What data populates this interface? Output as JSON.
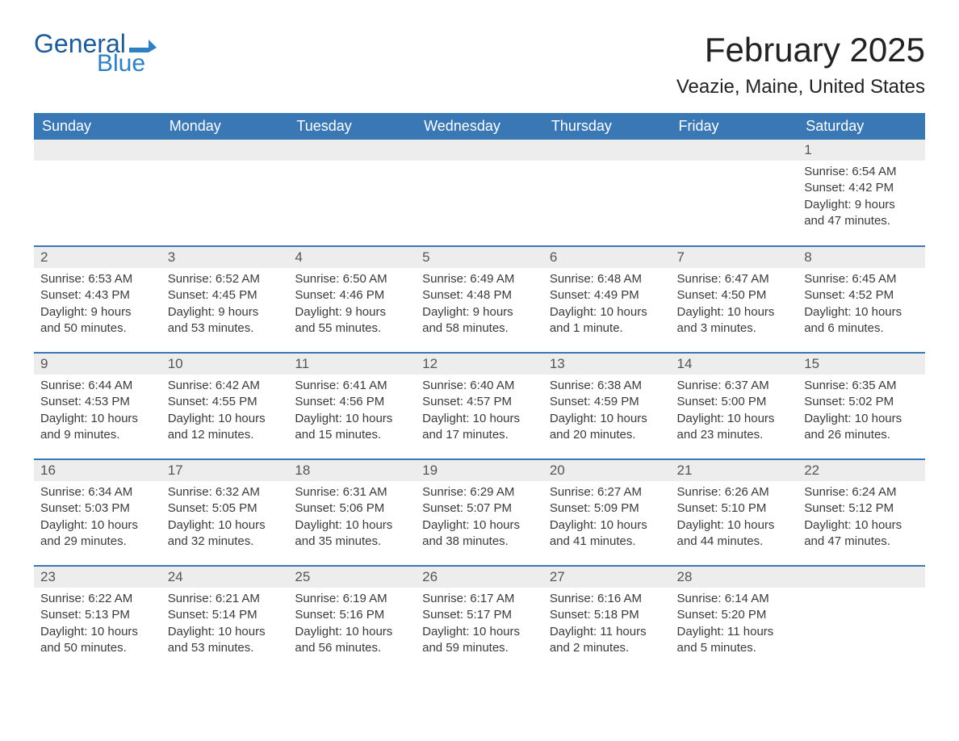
{
  "logo": {
    "word1": "General",
    "word2": "Blue",
    "flag_color": "#2f80c2"
  },
  "title": "February 2025",
  "location": "Veazie, Maine, United States",
  "header_bg": "#3a78b5",
  "dayrow_bg": "#ededed",
  "sep_color": "#3a78b5",
  "weekdays": [
    "Sunday",
    "Monday",
    "Tuesday",
    "Wednesday",
    "Thursday",
    "Friday",
    "Saturday"
  ],
  "weeks": [
    [
      null,
      null,
      null,
      null,
      null,
      null,
      {
        "n": "1",
        "sunrise": "Sunrise: 6:54 AM",
        "sunset": "Sunset: 4:42 PM",
        "day1": "Daylight: 9 hours",
        "day2": "and 47 minutes."
      }
    ],
    [
      {
        "n": "2",
        "sunrise": "Sunrise: 6:53 AM",
        "sunset": "Sunset: 4:43 PM",
        "day1": "Daylight: 9 hours",
        "day2": "and 50 minutes."
      },
      {
        "n": "3",
        "sunrise": "Sunrise: 6:52 AM",
        "sunset": "Sunset: 4:45 PM",
        "day1": "Daylight: 9 hours",
        "day2": "and 53 minutes."
      },
      {
        "n": "4",
        "sunrise": "Sunrise: 6:50 AM",
        "sunset": "Sunset: 4:46 PM",
        "day1": "Daylight: 9 hours",
        "day2": "and 55 minutes."
      },
      {
        "n": "5",
        "sunrise": "Sunrise: 6:49 AM",
        "sunset": "Sunset: 4:48 PM",
        "day1": "Daylight: 9 hours",
        "day2": "and 58 minutes."
      },
      {
        "n": "6",
        "sunrise": "Sunrise: 6:48 AM",
        "sunset": "Sunset: 4:49 PM",
        "day1": "Daylight: 10 hours",
        "day2": "and 1 minute."
      },
      {
        "n": "7",
        "sunrise": "Sunrise: 6:47 AM",
        "sunset": "Sunset: 4:50 PM",
        "day1": "Daylight: 10 hours",
        "day2": "and 3 minutes."
      },
      {
        "n": "8",
        "sunrise": "Sunrise: 6:45 AM",
        "sunset": "Sunset: 4:52 PM",
        "day1": "Daylight: 10 hours",
        "day2": "and 6 minutes."
      }
    ],
    [
      {
        "n": "9",
        "sunrise": "Sunrise: 6:44 AM",
        "sunset": "Sunset: 4:53 PM",
        "day1": "Daylight: 10 hours",
        "day2": "and 9 minutes."
      },
      {
        "n": "10",
        "sunrise": "Sunrise: 6:42 AM",
        "sunset": "Sunset: 4:55 PM",
        "day1": "Daylight: 10 hours",
        "day2": "and 12 minutes."
      },
      {
        "n": "11",
        "sunrise": "Sunrise: 6:41 AM",
        "sunset": "Sunset: 4:56 PM",
        "day1": "Daylight: 10 hours",
        "day2": "and 15 minutes."
      },
      {
        "n": "12",
        "sunrise": "Sunrise: 6:40 AM",
        "sunset": "Sunset: 4:57 PM",
        "day1": "Daylight: 10 hours",
        "day2": "and 17 minutes."
      },
      {
        "n": "13",
        "sunrise": "Sunrise: 6:38 AM",
        "sunset": "Sunset: 4:59 PM",
        "day1": "Daylight: 10 hours",
        "day2": "and 20 minutes."
      },
      {
        "n": "14",
        "sunrise": "Sunrise: 6:37 AM",
        "sunset": "Sunset: 5:00 PM",
        "day1": "Daylight: 10 hours",
        "day2": "and 23 minutes."
      },
      {
        "n": "15",
        "sunrise": "Sunrise: 6:35 AM",
        "sunset": "Sunset: 5:02 PM",
        "day1": "Daylight: 10 hours",
        "day2": "and 26 minutes."
      }
    ],
    [
      {
        "n": "16",
        "sunrise": "Sunrise: 6:34 AM",
        "sunset": "Sunset: 5:03 PM",
        "day1": "Daylight: 10 hours",
        "day2": "and 29 minutes."
      },
      {
        "n": "17",
        "sunrise": "Sunrise: 6:32 AM",
        "sunset": "Sunset: 5:05 PM",
        "day1": "Daylight: 10 hours",
        "day2": "and 32 minutes."
      },
      {
        "n": "18",
        "sunrise": "Sunrise: 6:31 AM",
        "sunset": "Sunset: 5:06 PM",
        "day1": "Daylight: 10 hours",
        "day2": "and 35 minutes."
      },
      {
        "n": "19",
        "sunrise": "Sunrise: 6:29 AM",
        "sunset": "Sunset: 5:07 PM",
        "day1": "Daylight: 10 hours",
        "day2": "and 38 minutes."
      },
      {
        "n": "20",
        "sunrise": "Sunrise: 6:27 AM",
        "sunset": "Sunset: 5:09 PM",
        "day1": "Daylight: 10 hours",
        "day2": "and 41 minutes."
      },
      {
        "n": "21",
        "sunrise": "Sunrise: 6:26 AM",
        "sunset": "Sunset: 5:10 PM",
        "day1": "Daylight: 10 hours",
        "day2": "and 44 minutes."
      },
      {
        "n": "22",
        "sunrise": "Sunrise: 6:24 AM",
        "sunset": "Sunset: 5:12 PM",
        "day1": "Daylight: 10 hours",
        "day2": "and 47 minutes."
      }
    ],
    [
      {
        "n": "23",
        "sunrise": "Sunrise: 6:22 AM",
        "sunset": "Sunset: 5:13 PM",
        "day1": "Daylight: 10 hours",
        "day2": "and 50 minutes."
      },
      {
        "n": "24",
        "sunrise": "Sunrise: 6:21 AM",
        "sunset": "Sunset: 5:14 PM",
        "day1": "Daylight: 10 hours",
        "day2": "and 53 minutes."
      },
      {
        "n": "25",
        "sunrise": "Sunrise: 6:19 AM",
        "sunset": "Sunset: 5:16 PM",
        "day1": "Daylight: 10 hours",
        "day2": "and 56 minutes."
      },
      {
        "n": "26",
        "sunrise": "Sunrise: 6:17 AM",
        "sunset": "Sunset: 5:17 PM",
        "day1": "Daylight: 10 hours",
        "day2": "and 59 minutes."
      },
      {
        "n": "27",
        "sunrise": "Sunrise: 6:16 AM",
        "sunset": "Sunset: 5:18 PM",
        "day1": "Daylight: 11 hours",
        "day2": "and 2 minutes."
      },
      {
        "n": "28",
        "sunrise": "Sunrise: 6:14 AM",
        "sunset": "Sunset: 5:20 PM",
        "day1": "Daylight: 11 hours",
        "day2": "and 5 minutes."
      },
      null
    ]
  ]
}
